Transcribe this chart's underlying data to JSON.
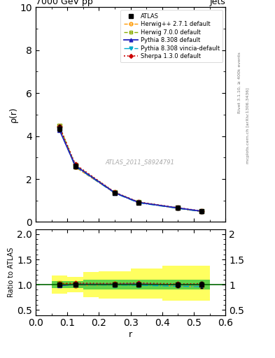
{
  "title": "7000 GeV pp",
  "title_right": "Jets",
  "xlabel": "r",
  "ylabel_main": "ρ(r)",
  "ylabel_ratio": "Ratio to ATLAS",
  "watermark": "ATLAS_2011_S8924791",
  "right_label_top": "Rivet 3.1.10, ≥ 400k events",
  "right_label_bot": "mcplots.cern.ch [arXiv:1306.3436]",
  "x_data": [
    0.075,
    0.125,
    0.25,
    0.325,
    0.45,
    0.525
  ],
  "atlas_y": [
    4.35,
    2.6,
    1.35,
    0.9,
    0.65,
    0.5
  ],
  "atlas_yerr": [
    0.15,
    0.1,
    0.05,
    0.04,
    0.03,
    0.03
  ],
  "herwig271_y": [
    4.42,
    2.55,
    1.35,
    0.92,
    0.63,
    0.48
  ],
  "herwig700_y": [
    4.47,
    2.65,
    1.38,
    0.92,
    0.65,
    0.5
  ],
  "pythia8308_y": [
    4.28,
    2.62,
    1.36,
    0.91,
    0.65,
    0.5
  ],
  "pythia8308v_y": [
    4.3,
    2.58,
    1.34,
    0.89,
    0.63,
    0.48
  ],
  "sherpa130_y": [
    4.44,
    2.68,
    1.38,
    0.93,
    0.66,
    0.51
  ],
  "ylim_main": [
    0,
    10
  ],
  "ylim_ratio": [
    0.4,
    2.1
  ],
  "yticks_main": [
    0,
    2,
    4,
    6,
    8,
    10
  ],
  "yticks_ratio": [
    0.5,
    1.0,
    1.5,
    2.0
  ],
  "x_edges": [
    0.05,
    0.1,
    0.15,
    0.2,
    0.3,
    0.4,
    0.55
  ],
  "band_yellow_lo": [
    0.82,
    0.85,
    0.75,
    0.73,
    0.73,
    0.68
  ],
  "band_yellow_hi": [
    1.18,
    1.15,
    1.25,
    1.27,
    1.32,
    1.38
  ],
  "band_green_lo": [
    0.93,
    0.93,
    0.9,
    0.9,
    0.9,
    0.9
  ],
  "band_green_hi": [
    1.07,
    1.07,
    1.1,
    1.1,
    1.1,
    1.1
  ],
  "color_atlas": "#000000",
  "color_herwig271": "#ff9900",
  "color_herwig700": "#88aa00",
  "color_pythia8308": "#2222bb",
  "color_pythia8308v": "#00aacc",
  "color_sherpa130": "#cc0000",
  "color_band_yellow": "#ffff44",
  "color_band_green": "#44cc44",
  "background_color": "#ffffff"
}
